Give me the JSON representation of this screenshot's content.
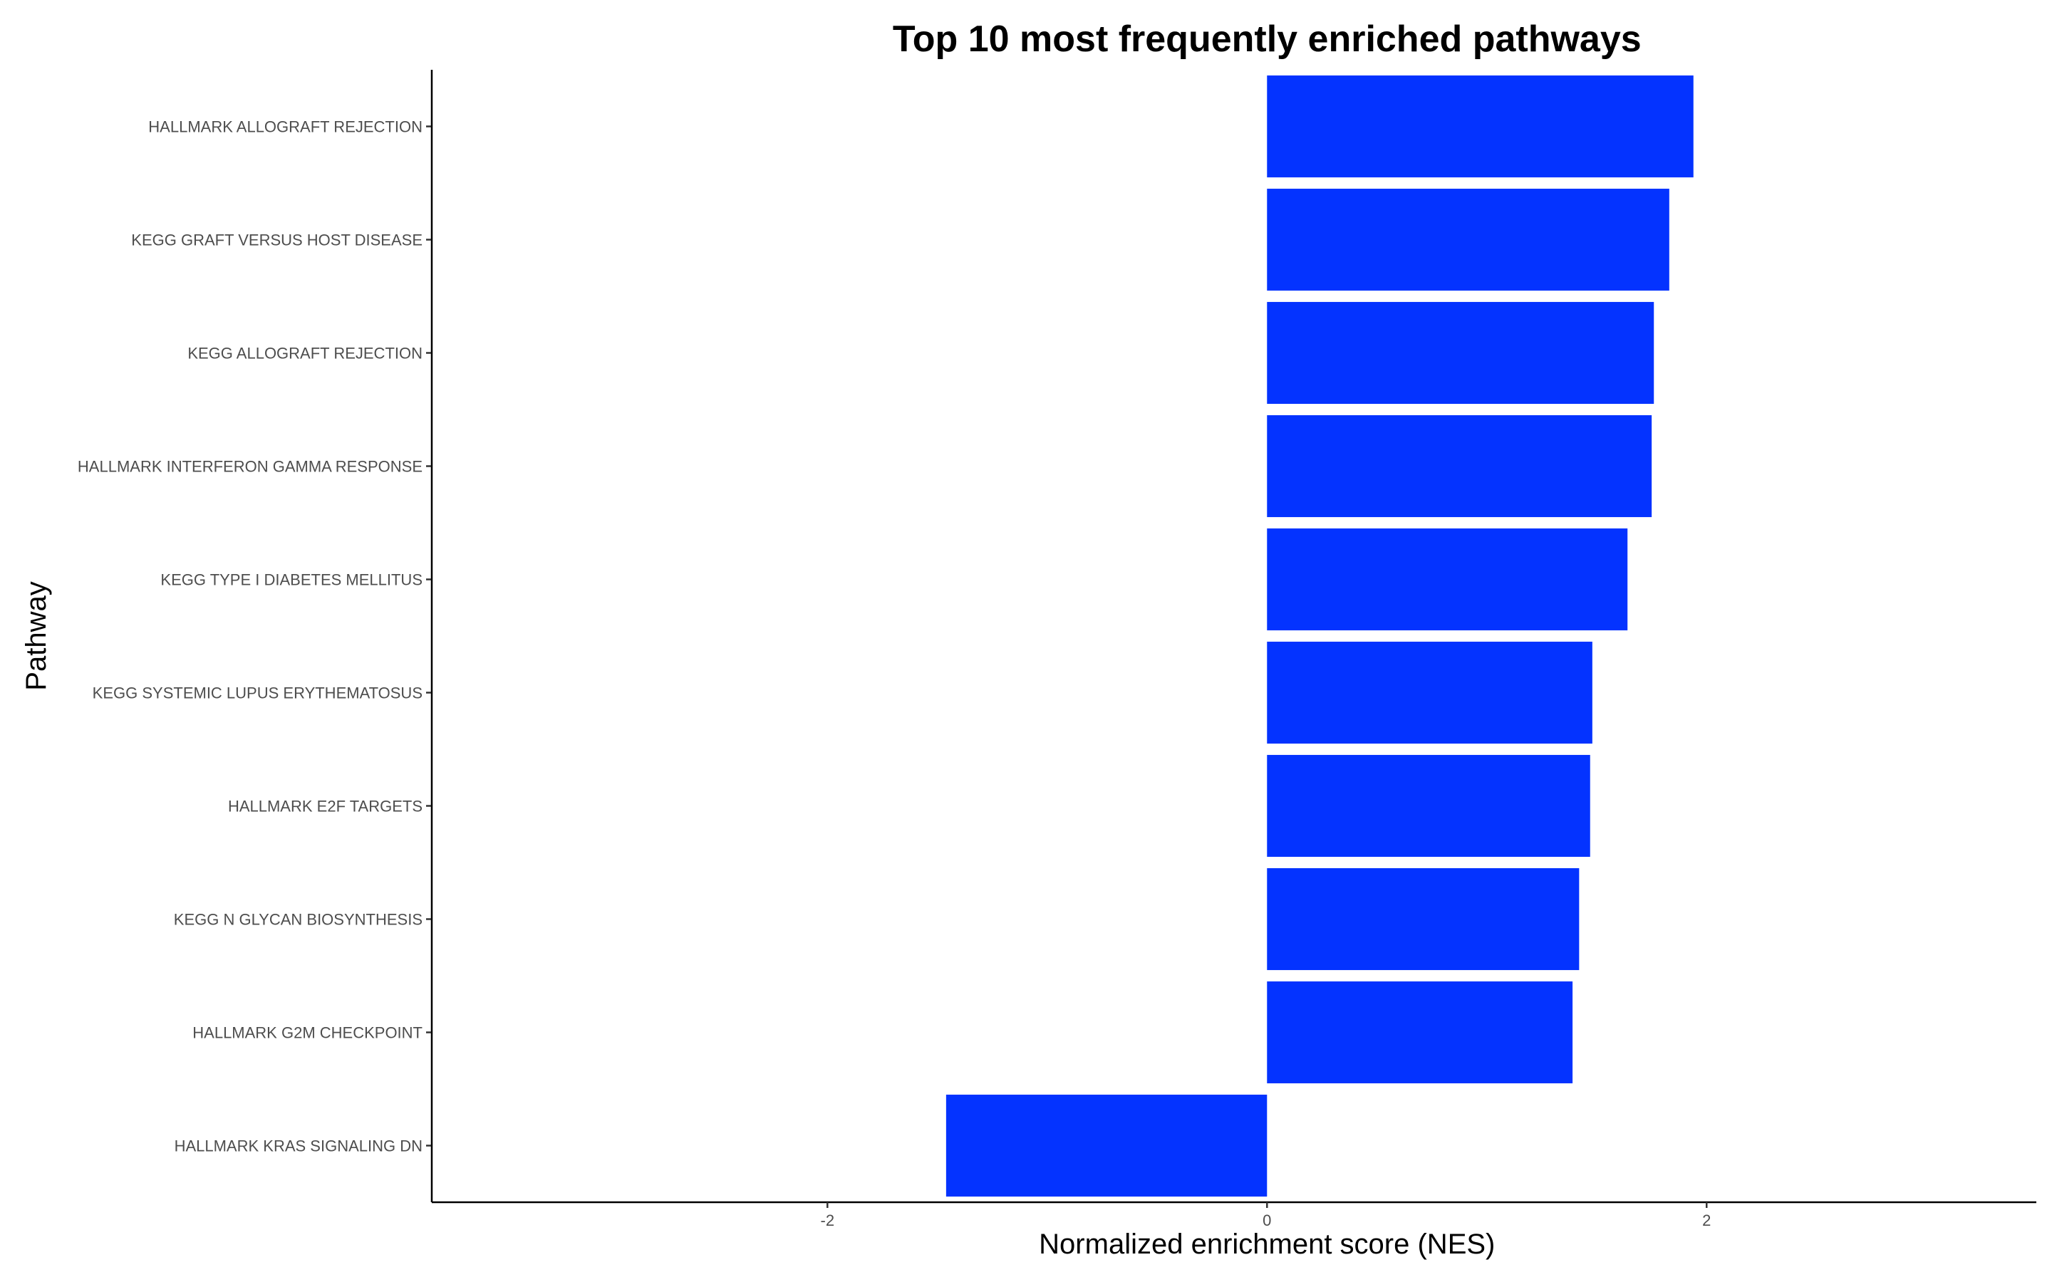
{
  "chart_data": {
    "type": "bar",
    "orientation": "horizontal",
    "title": "Top 10 most frequently enriched pathways",
    "xlabel": "Normalized enrichment score (NES)",
    "ylabel": "Pathway",
    "xlim": [
      -3.8,
      3.5
    ],
    "x_ticks": [
      "-2",
      "0",
      "2"
    ],
    "bar_color": "#0433ff",
    "grid": false,
    "legend": "none",
    "categories": [
      "HALLMARK ALLOGRAFT REJECTION",
      "KEGG GRAFT VERSUS HOST DISEASE",
      "KEGG ALLOGRAFT REJECTION",
      "HALLMARK INTERFERON GAMMA RESPONSE",
      "KEGG TYPE I DIABETES MELLITUS",
      "KEGG SYSTEMIC LUPUS ERYTHEMATOSUS",
      "HALLMARK E2F TARGETS",
      "KEGG N GLYCAN BIOSYNTHESIS",
      "HALLMARK G2M CHECKPOINT",
      "HALLMARK KRAS SIGNALING DN"
    ],
    "values": [
      1.94,
      1.83,
      1.76,
      1.75,
      1.64,
      1.48,
      1.47,
      1.42,
      1.39,
      -1.46
    ]
  }
}
